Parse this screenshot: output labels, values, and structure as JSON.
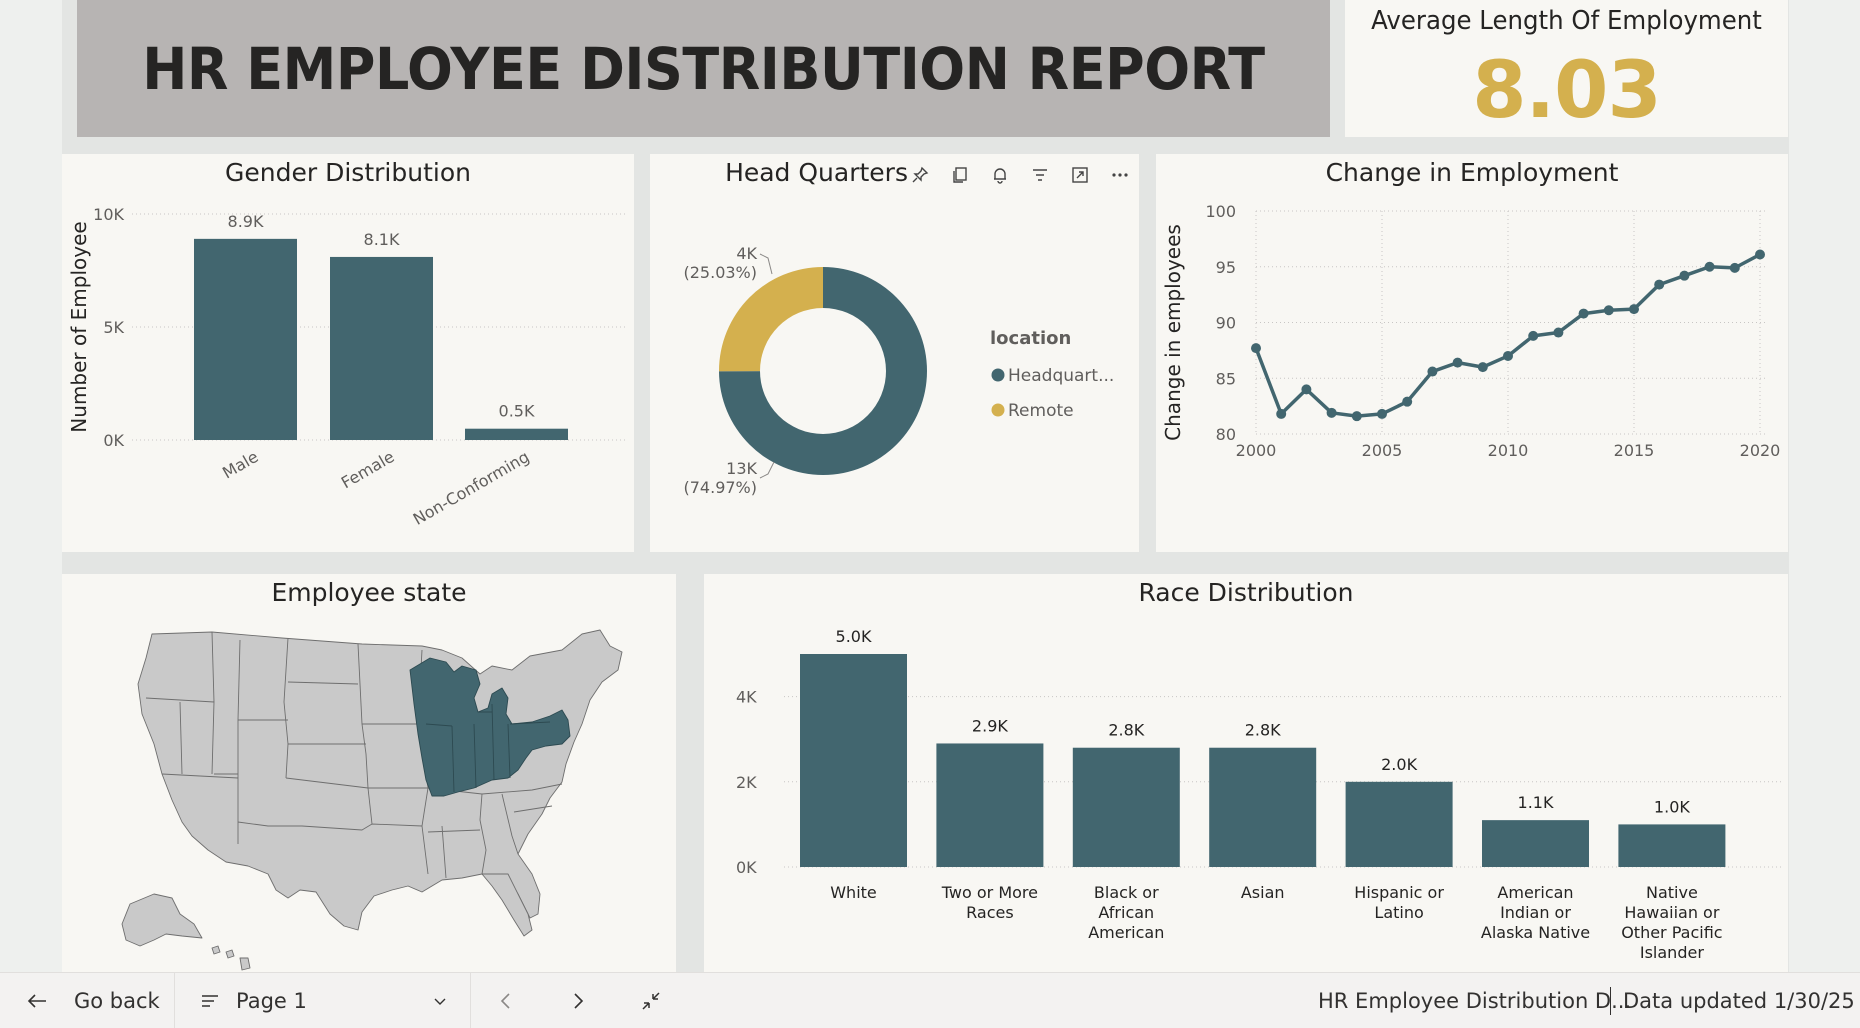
{
  "report": {
    "title": "HR EMPLOYEE DISTRIBUTION REPORT"
  },
  "kpi": {
    "label": "Average Length Of Employment",
    "value": "8.03",
    "value_color": "#d4b04e"
  },
  "colors": {
    "primary": "#42666f",
    "accent": "#d4b04e",
    "map_gray": "#c7c7c7",
    "tile_bg": "#f8f7f3",
    "banner_bg": "#b7b4b3"
  },
  "gender_chart": {
    "title": "Gender Distribution",
    "chart_data": {
      "type": "bar",
      "title": "Gender Distribution",
      "ylabel": "Number of Employee",
      "xlabel": "",
      "categories": [
        "Male",
        "Female",
        "Non-Conforming"
      ],
      "values": [
        8900,
        8100,
        500
      ],
      "data_labels": [
        "8.9K",
        "8.1K",
        "0.5K"
      ],
      "ylim": [
        0,
        10000
      ],
      "yticks": [
        0,
        5000,
        10000
      ],
      "ytick_labels": [
        "0K",
        "5K",
        "10K"
      ],
      "grid": true
    }
  },
  "location_chart": {
    "title": "Head Quarters",
    "legend_title": "location",
    "chart_data": {
      "type": "pie",
      "title": "Head Quarters",
      "categories": [
        "Headquart...",
        "Remote"
      ],
      "values": [
        74.97,
        25.03
      ],
      "data_labels": [
        "13K",
        "4K"
      ],
      "percent_labels": [
        "(74.97%)",
        "(25.03%)"
      ],
      "colors": [
        "#42666f",
        "#d4b04e"
      ],
      "legend": "right"
    },
    "header_icons": [
      "pin-icon",
      "copy-icon",
      "bell-icon",
      "filter-icon",
      "focus-mode-icon",
      "more-options-icon"
    ]
  },
  "employment_chart": {
    "title": "Change in Employment",
    "chart_data": {
      "type": "line",
      "title": "Change in Employment",
      "ylabel": "Change in employees",
      "xlabel": "",
      "x": [
        2000,
        2001,
        2002,
        2003,
        2004,
        2005,
        2006,
        2007,
        2008,
        2009,
        2010,
        2011,
        2012,
        2013,
        2014,
        2015,
        2016,
        2017,
        2018,
        2019,
        2020
      ],
      "y": [
        87.7,
        81.8,
        84.0,
        81.9,
        81.6,
        81.8,
        82.9,
        85.6,
        86.4,
        86.0,
        87.0,
        88.8,
        89.1,
        90.8,
        91.1,
        91.2,
        93.4,
        94.2,
        95.0,
        94.9,
        96.1
      ],
      "xticks": [
        2000,
        2005,
        2010,
        2015,
        2020
      ],
      "xtick_labels": [
        "2000",
        "2005",
        "2010",
        "2015",
        "2020"
      ],
      "yticks": [
        80,
        85,
        90,
        95,
        100
      ],
      "ytick_labels": [
        "80",
        "85",
        "90",
        "95",
        "100"
      ],
      "xlim": [
        2000,
        2020
      ],
      "ylim": [
        80,
        100
      ],
      "grid": true
    }
  },
  "state_map": {
    "title": "Employee state",
    "highlighted_states": [
      "Wisconsin",
      "Michigan",
      "Illinois",
      "Indiana",
      "Ohio",
      "Kentucky",
      "Pennsylvania"
    ]
  },
  "race_chart": {
    "title": "Race Distribution",
    "chart_data": {
      "type": "bar",
      "title": "Race Distribution",
      "xlabel": "",
      "ylabel": "",
      "categories": [
        "White",
        "Two or More Races",
        "Black or African American",
        "Asian",
        "Hispanic or Latino",
        "American Indian or Alaska Native",
        "Native Hawaiian or Other Pacific Islander"
      ],
      "category_lines": [
        [
          "White"
        ],
        [
          "Two or More",
          "Races"
        ],
        [
          "Black or",
          "African",
          "American"
        ],
        [
          "Asian"
        ],
        [
          "Hispanic or",
          "Latino"
        ],
        [
          "American",
          "Indian or",
          "Alaska Native"
        ],
        [
          "Native",
          "Hawaiian or",
          "Other Pacific",
          "Islander"
        ]
      ],
      "values": [
        5000,
        2900,
        2800,
        2800,
        2000,
        1100,
        1000
      ],
      "data_labels": [
        "5.0K",
        "2.9K",
        "2.8K",
        "2.8K",
        "2.0K",
        "1.1K",
        "1.0K"
      ],
      "ylim": [
        0,
        5000
      ],
      "yticks": [
        0,
        2000,
        4000
      ],
      "ytick_labels": [
        "0K",
        "2K",
        "4K"
      ],
      "grid": true
    }
  },
  "footer": {
    "back_label": "Go back",
    "page_label": "Page 1",
    "report_name": "HR Employee Distribution D...",
    "updated": "Data updated 1/30/25"
  }
}
